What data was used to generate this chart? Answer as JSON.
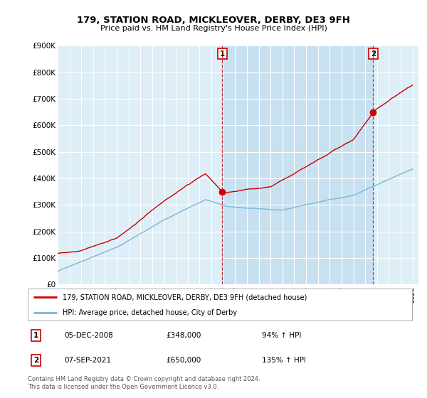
{
  "title": "179, STATION ROAD, MICKLEOVER, DERBY, DE3 9FH",
  "subtitle": "Price paid vs. HM Land Registry's House Price Index (HPI)",
  "ylim": [
    0,
    900000
  ],
  "yticks": [
    0,
    100000,
    200000,
    300000,
    400000,
    500000,
    600000,
    700000,
    800000,
    900000
  ],
  "ytick_labels": [
    "£0",
    "£100K",
    "£200K",
    "£300K",
    "£400K",
    "£500K",
    "£600K",
    "£700K",
    "£800K",
    "£900K"
  ],
  "background_color": "#ffffff",
  "plot_bg_color": "#ddeef7",
  "grid_color": "#ffffff",
  "hpi_color": "#7ab8d9",
  "price_color": "#cc0000",
  "shade_color": "#c5dff0",
  "marker1_year": 2008.92,
  "marker1_value": 348000,
  "marker2_year": 2021.67,
  "marker2_value": 650000,
  "legend_price": "179, STATION ROAD, MICKLEOVER, DERBY, DE3 9FH (detached house)",
  "legend_hpi": "HPI: Average price, detached house, City of Derby",
  "note1_label": "1",
  "note1_date": "05-DEC-2008",
  "note1_price": "£348,000",
  "note1_hpi": "94% ↑ HPI",
  "note2_label": "2",
  "note2_date": "07-SEP-2021",
  "note2_price": "£650,000",
  "note2_hpi": "135% ↑ HPI",
  "footer": "Contains HM Land Registry data © Crown copyright and database right 2024.\nThis data is licensed under the Open Government Licence v3.0."
}
